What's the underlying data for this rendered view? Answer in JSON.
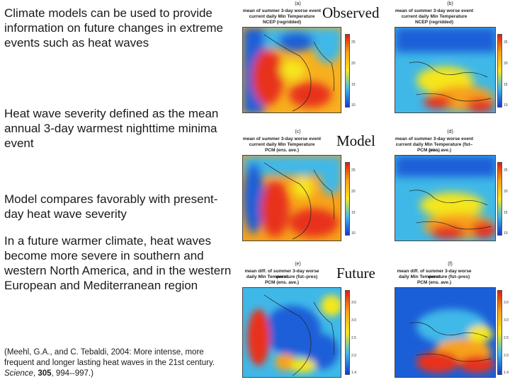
{
  "bullets": {
    "b1": "Climate models can be used to provide information on future changes in extreme events such as heat waves",
    "b2": "Heat wave severity defined as the mean annual 3-day warmest nighttime minima event",
    "b3": "Model compares favorably with present-day heat wave severity",
    "b4": "In a future warmer climate, heat waves become more severe in southern and western North America, and in the western European and Mediterranean region"
  },
  "citation": {
    "pre": "(Meehl, G.A., and C. Tebaldi, 2004:  More intense, more frequent and longer lasting heat waves in the 21st century.",
    "journal": "Science",
    "volume": "305",
    "pages": ", 994--997.)"
  },
  "labels": {
    "observed": "Observed",
    "model": "Model",
    "future": "Future"
  },
  "panels": {
    "a": {
      "letter": "(a)",
      "title1": "mean of summer 3-day worse event",
      "title2": "current daily Min Temperature",
      "title3": "NCEP (regridded)"
    },
    "b": {
      "letter": "(b)",
      "title1": "mean of summer 3-day worse event",
      "title2": "current daily Min Temperature",
      "title3": "NCEP (regridded)"
    },
    "c": {
      "letter": "(c)",
      "title1": "mean of summer 3-day worse event",
      "title2": "current daily Min Temperature",
      "title3": "PCM (ens. ave.)"
    },
    "d": {
      "letter": "(d)",
      "title1": "mean of summer 3-day worse event",
      "title2": "current daily Min Temperature (fut–pres)",
      "title3": "PCM (ens. ave.)"
    },
    "e": {
      "letter": "(e)",
      "title1": "mean diff. of summer 3-day worse event",
      "title2": "daily Min Temperature (fut–pres)",
      "title3": "PCM (ens. ave.)"
    },
    "f": {
      "letter": "(f)",
      "title1": "mean diff. of summer 3-day worse event",
      "title2": "daily Min Temperature (fut–pres)",
      "title3": "PCM (ens. ave.)"
    }
  },
  "colorbar_ticks": {
    "top": [
      "25",
      "20",
      "15",
      "10"
    ],
    "bottom": [
      "3.6",
      "3.0",
      "2.5",
      "2.0",
      "1.4"
    ]
  },
  "colors": {
    "hot": "#d81e10",
    "warm": "#f7a21a",
    "mild": "#f5e61d",
    "cool": "#3fb8e8",
    "cold": "#1739c9"
  }
}
